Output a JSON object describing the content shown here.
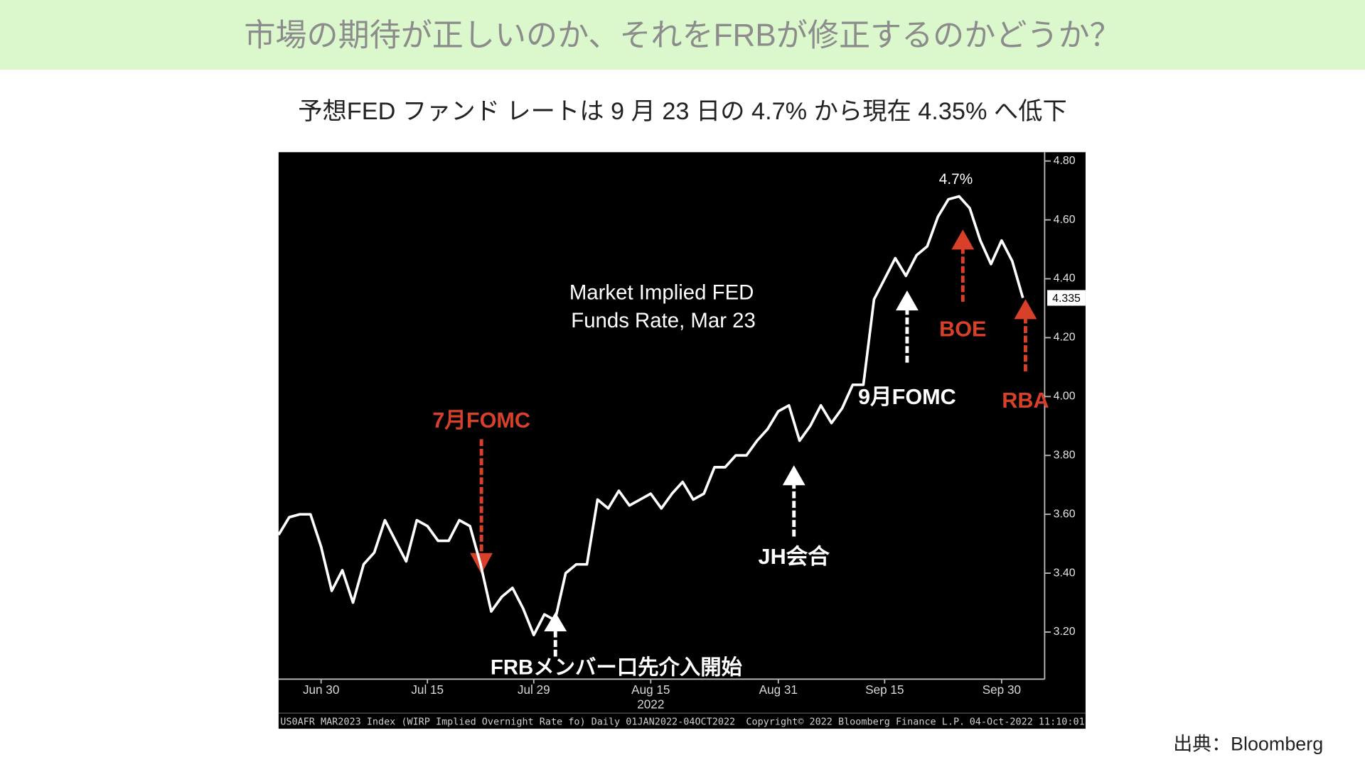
{
  "page": {
    "title": "市場の期待が正しいのか、それをFRBが修正するのかどうか？",
    "source": "出典：Bloomberg"
  },
  "chart_data": {
    "type": "line",
    "title": "予想FED ファンド レートは 9 月 23 日の 4.7% から現在 4.35% へ低下",
    "x": [
      "2022-06-24",
      "2022-06-27",
      "2022-06-28",
      "2022-06-29",
      "2022-06-30",
      "2022-07-01",
      "2022-07-05",
      "2022-07-06",
      "2022-07-07",
      "2022-07-08",
      "2022-07-11",
      "2022-07-12",
      "2022-07-13",
      "2022-07-14",
      "2022-07-15",
      "2022-07-18",
      "2022-07-19",
      "2022-07-20",
      "2022-07-21",
      "2022-07-22",
      "2022-07-25",
      "2022-07-26",
      "2022-07-27",
      "2022-07-28",
      "2022-07-29",
      "2022-08-01",
      "2022-08-02",
      "2022-08-03",
      "2022-08-04",
      "2022-08-05",
      "2022-08-08",
      "2022-08-09",
      "2022-08-10",
      "2022-08-11",
      "2022-08-12",
      "2022-08-15",
      "2022-08-16",
      "2022-08-17",
      "2022-08-18",
      "2022-08-19",
      "2022-08-22",
      "2022-08-23",
      "2022-08-24",
      "2022-08-25",
      "2022-08-26",
      "2022-08-29",
      "2022-08-30",
      "2022-08-31",
      "2022-09-01",
      "2022-09-02",
      "2022-09-06",
      "2022-09-07",
      "2022-09-08",
      "2022-09-09",
      "2022-09-12",
      "2022-09-13",
      "2022-09-14",
      "2022-09-15",
      "2022-09-16",
      "2022-09-19",
      "2022-09-20",
      "2022-09-21",
      "2022-09-22",
      "2022-09-23",
      "2022-09-26",
      "2022-09-27",
      "2022-09-28",
      "2022-09-29",
      "2022-09-30",
      "2022-10-03",
      "2022-10-04"
    ],
    "series": [
      {
        "color": "#ffffff",
        "values": [
          3.53,
          3.59,
          3.6,
          3.6,
          3.49,
          3.34,
          3.41,
          3.3,
          3.43,
          3.47,
          3.58,
          3.51,
          3.44,
          3.58,
          3.56,
          3.51,
          3.51,
          3.58,
          3.56,
          3.43,
          3.27,
          3.32,
          3.35,
          3.28,
          3.19,
          3.26,
          3.24,
          3.4,
          3.43,
          3.43,
          3.65,
          3.62,
          3.68,
          3.63,
          3.65,
          3.67,
          3.62,
          3.67,
          3.71,
          3.65,
          3.67,
          3.76,
          3.76,
          3.8,
          3.8,
          3.85,
          3.89,
          3.95,
          3.97,
          3.85,
          3.9,
          3.97,
          3.91,
          3.96,
          4.04,
          4.04,
          4.33,
          4.4,
          4.47,
          4.41,
          4.48,
          4.51,
          4.61,
          4.67,
          4.68,
          4.64,
          4.53,
          4.45,
          4.53,
          4.46,
          4.335
        ]
      }
    ],
    "ylim": [
      3.04,
      4.83
    ],
    "yticks": [
      {
        "value": 3.2,
        "label": "3.20"
      },
      {
        "value": 3.4,
        "label": "3.40"
      },
      {
        "value": 3.6,
        "label": "3.60"
      },
      {
        "value": 3.8,
        "label": "3.80"
      },
      {
        "value": 4.0,
        "label": "4.00"
      },
      {
        "value": 4.2,
        "label": "4.20"
      },
      {
        "value": 4.4,
        "label": "4.40"
      },
      {
        "value": 4.6,
        "label": "4.60"
      },
      {
        "value": 4.8,
        "label": "4.80"
      }
    ],
    "xticks": [
      {
        "value": "2022-06-30",
        "label": "Jun 30"
      },
      {
        "value": "2022-07-15",
        "label": "Jul 15"
      },
      {
        "value": "2022-07-29",
        "label": "Jul 29"
      },
      {
        "value": "2022-08-15",
        "label": "Aug 15"
      },
      {
        "value": "2022-08-31",
        "label": "Aug 31"
      },
      {
        "value": "2022-09-15",
        "label": "Sep 15"
      },
      {
        "value": "2022-09-30",
        "label": "Sep 30"
      }
    ],
    "x_axis_label": "2022",
    "annotations": [
      {
        "text": "Market Implied FED",
        "color": "#ffffff"
      },
      {
        "text": "Funds Rate, Mar 23",
        "color": "#ffffff"
      },
      {
        "text": "4.7%",
        "color": "#ffffff"
      },
      {
        "text": "7月FOMC",
        "color": "#d8402a"
      },
      {
        "text": "FRBメンバー口先介入開始",
        "color": "#ffffff"
      },
      {
        "text": "JH会合",
        "color": "#ffffff"
      },
      {
        "text": "9月FOMC",
        "color": "#ffffff"
      },
      {
        "text": "BOE",
        "color": "#d8402a"
      },
      {
        "text": "RBA",
        "color": "#d8402a"
      }
    ],
    "footer": [
      "US0AFR MAR2023 Index (WIRP Implied Overnight Rate fo)  Daily 01JAN2022-04OCT2022",
      "Copyright© 2022 Bloomberg Finance L.P.",
      "04-Oct-2022 11:10:01"
    ]
  }
}
